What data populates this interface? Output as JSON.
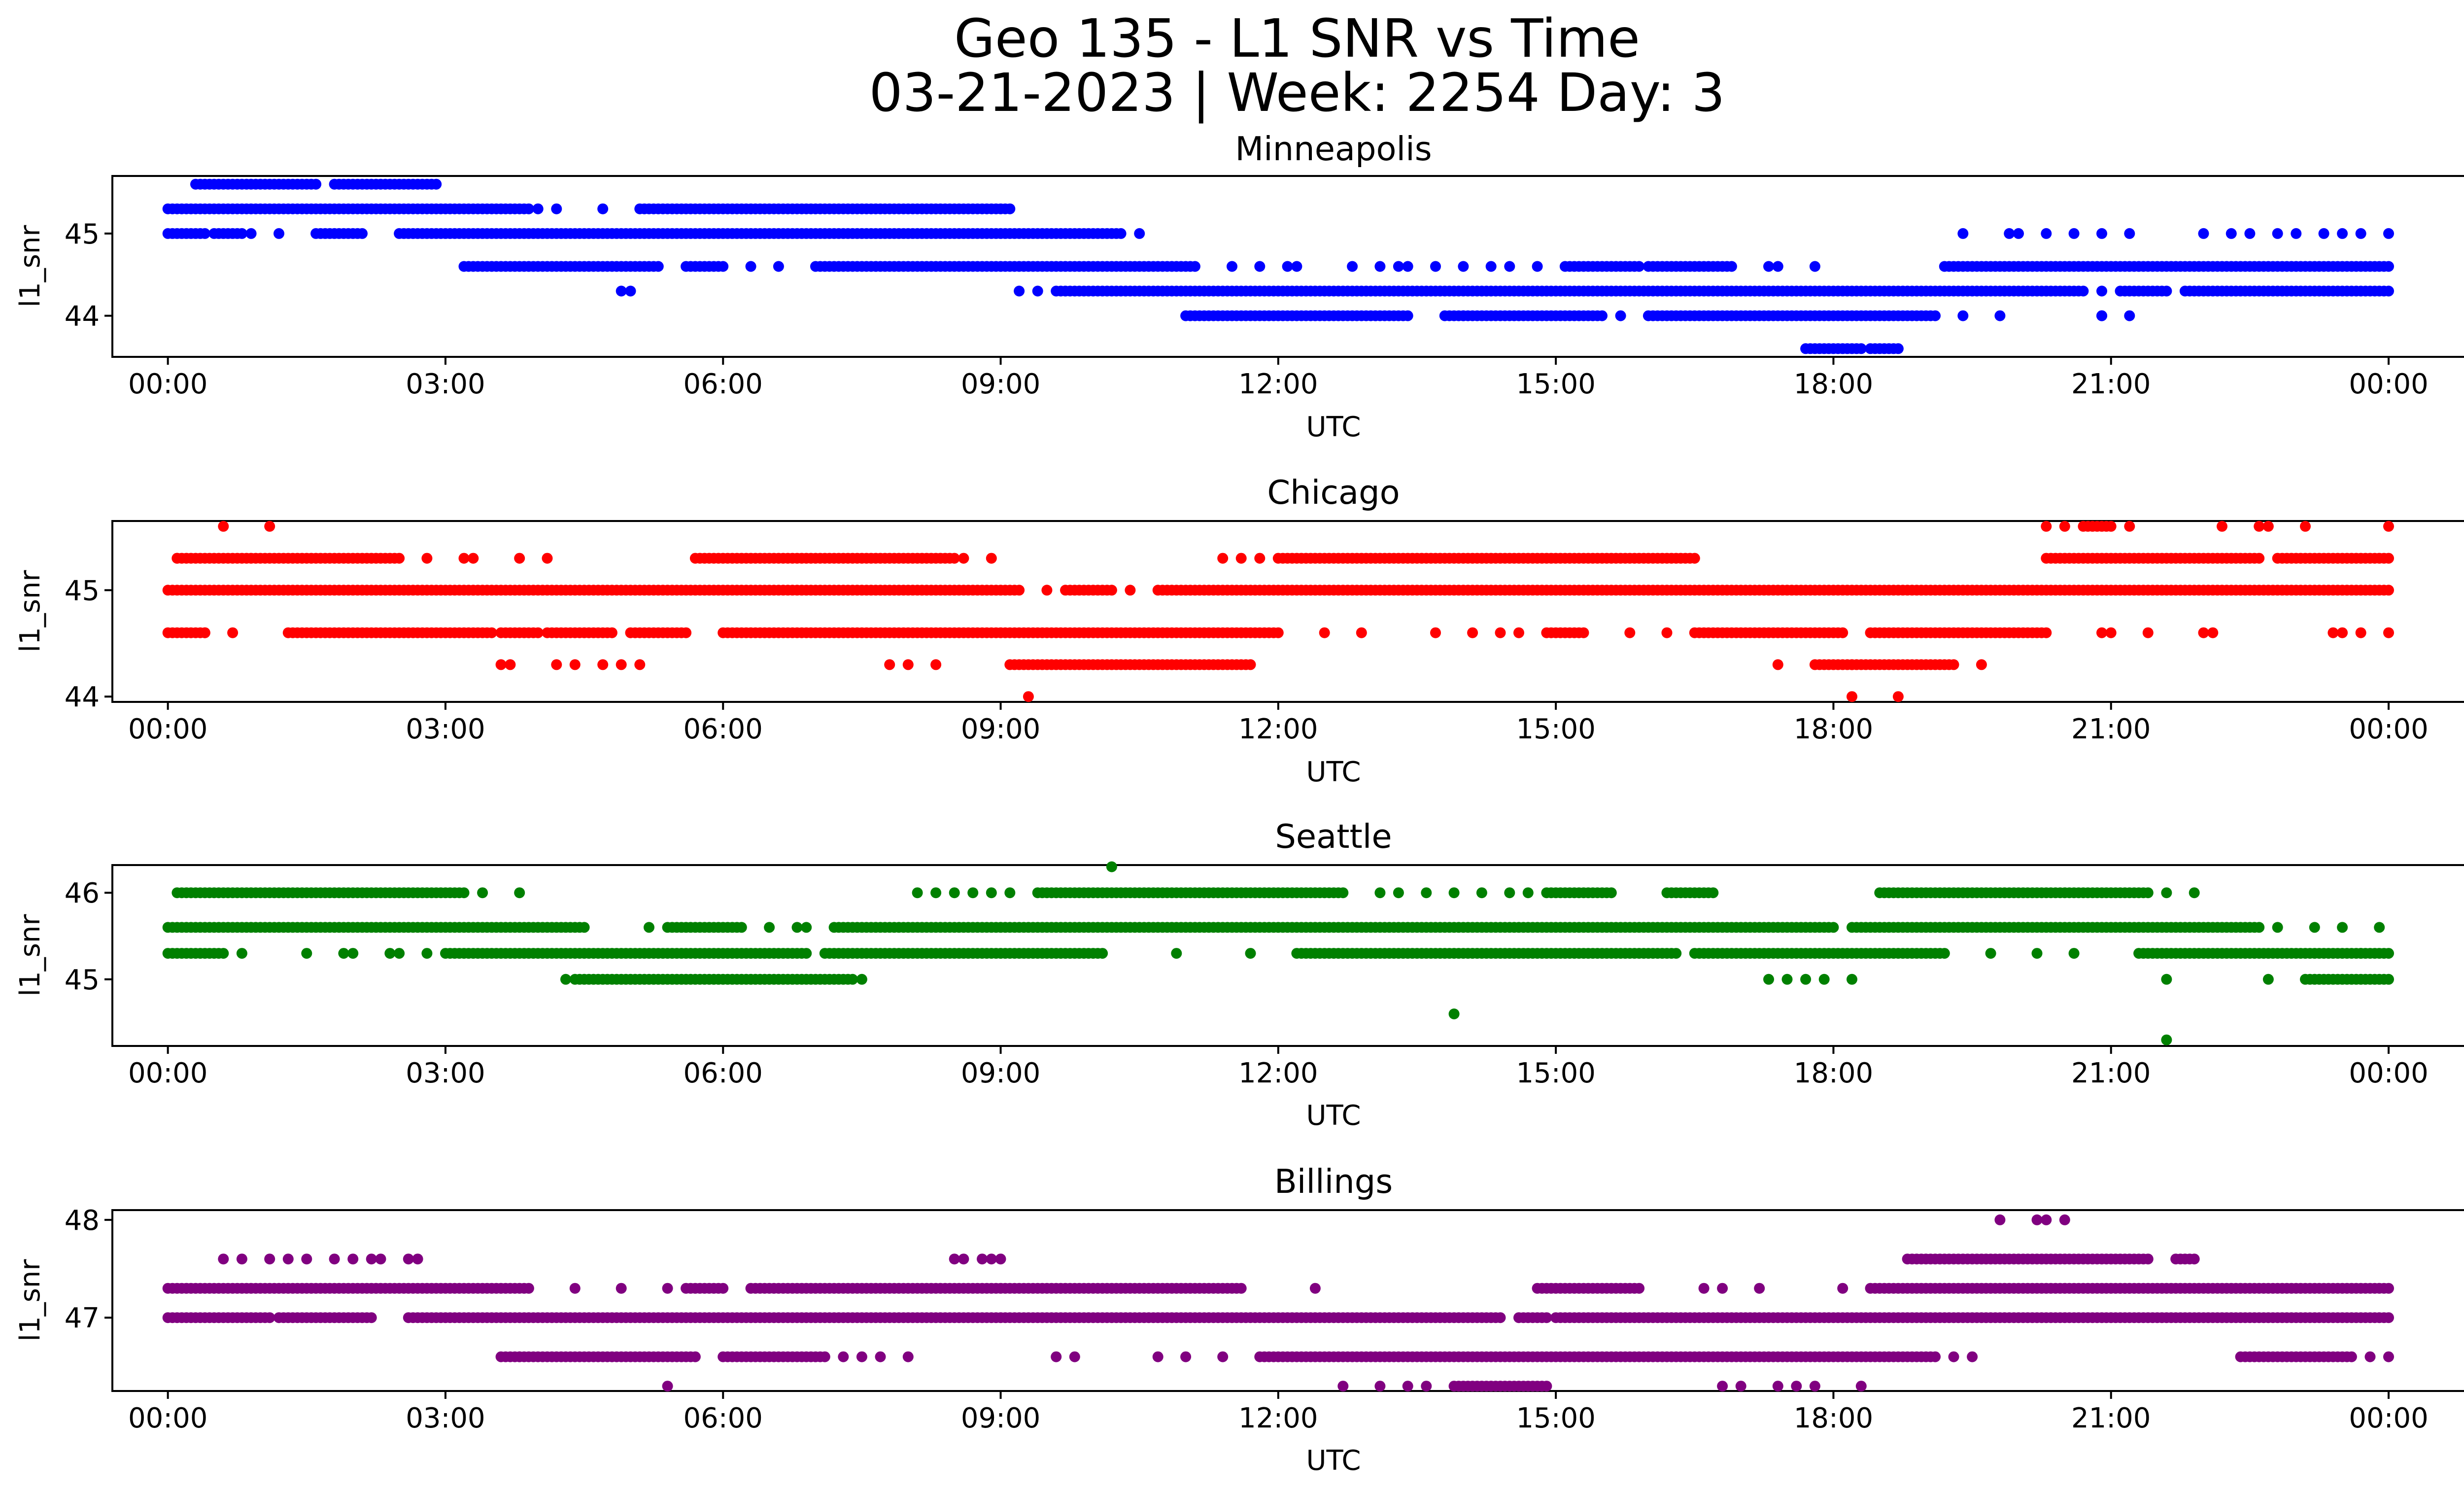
{
  "figure": {
    "title_line1": "Geo 135 - L1 SNR vs Time",
    "title_line2": "03-21-2023 | Week: 2254 Day: 3"
  },
  "chart_data": [
    {
      "type": "scatter",
      "title": "Minneapolis",
      "xlabel": "UTC",
      "ylabel": "l1_snr",
      "color": "#0000ff",
      "xlim": [
        -0.6,
        25.8
      ],
      "ylim": [
        43.5,
        45.7
      ],
      "x_ticks": [
        0,
        3,
        6,
        9,
        12,
        15,
        18,
        21,
        24
      ],
      "x_tick_labels": [
        "00:00",
        "03:00",
        "06:00",
        "09:00",
        "12:00",
        "15:00",
        "18:00",
        "21:00",
        "00:00"
      ],
      "y_ticks": [
        44,
        45
      ],
      "y_tick_labels": [
        "44",
        "45"
      ],
      "levels": [
        {
          "y": 45.6,
          "segments": [
            [
              0.3,
              1.6
            ],
            [
              1.8,
              2.9
            ]
          ],
          "points": []
        },
        {
          "y": 45.3,
          "segments": [
            [
              0.0,
              3.9
            ],
            [
              5.1,
              9.1
            ]
          ],
          "points": [
            4.0,
            4.2,
            4.7
          ]
        },
        {
          "y": 45.0,
          "segments": [
            [
              0.0,
              0.4
            ],
            [
              0.5,
              0.8
            ],
            [
              1.6,
              2.1
            ],
            [
              2.5,
              10.3
            ]
          ],
          "points": [
            0.9,
            1.2,
            10.5
          ]
        },
        {
          "y": 44.6,
          "segments": [
            [
              3.2,
              5.3
            ],
            [
              5.6,
              6.0
            ],
            [
              7.0,
              11.1
            ],
            [
              15.1,
              15.9
            ],
            [
              16.0,
              16.9
            ],
            [
              19.2,
              24.0
            ]
          ],
          "points": [
            6.3,
            6.6,
            11.5,
            11.8,
            12.1,
            12.2,
            12.8,
            13.1,
            13.3,
            13.4,
            13.7,
            14.0,
            14.3,
            14.5,
            14.8,
            17.3,
            17.4,
            17.8
          ]
        },
        {
          "y": 44.3,
          "segments": [
            [
              9.6,
              20.7
            ],
            [
              21.1,
              21.6
            ],
            [
              21.8,
              24.0
            ]
          ],
          "points": [
            4.9,
            5.0,
            9.2,
            9.4,
            20.9
          ]
        },
        {
          "y": 44.0,
          "segments": [
            [
              11.0,
              13.4
            ],
            [
              13.8,
              15.5
            ],
            [
              16.0,
              19.1
            ]
          ],
          "points": [
            14.0,
            15.7,
            19.4,
            19.8,
            20.9
          ]
        },
        {
          "y": 43.6,
          "segments": [
            [
              17.7,
              18.3
            ],
            [
              18.4,
              18.7
            ]
          ],
          "points": []
        }
      ],
      "extra_points": [
        [
          19.4,
          45.0
        ],
        [
          19.9,
          45.0
        ],
        [
          20.0,
          45.0
        ],
        [
          20.3,
          45.0
        ],
        [
          20.6,
          45.0
        ],
        [
          20.9,
          45.0
        ],
        [
          21.2,
          45.0
        ],
        [
          22.0,
          45.0
        ],
        [
          22.3,
          45.0
        ],
        [
          22.5,
          45.0
        ],
        [
          22.8,
          45.0
        ],
        [
          23.0,
          45.0
        ],
        [
          23.3,
          45.0
        ],
        [
          23.5,
          45.0
        ],
        [
          23.7,
          45.0
        ],
        [
          24.0,
          45.0
        ],
        [
          20.9,
          44.0
        ],
        [
          21.2,
          44.0
        ]
      ]
    },
    {
      "type": "scatter",
      "title": "Chicago",
      "xlabel": "UTC",
      "ylabel": "l1_snr",
      "color": "#ff0000",
      "xlim": [
        -0.6,
        25.8
      ],
      "ylim": [
        43.95,
        45.65
      ],
      "x_ticks": [
        0,
        3,
        6,
        9,
        12,
        15,
        18,
        21,
        24
      ],
      "x_tick_labels": [
        "00:00",
        "03:00",
        "06:00",
        "09:00",
        "12:00",
        "15:00",
        "18:00",
        "21:00",
        "00:00"
      ],
      "y_ticks": [
        44,
        45
      ],
      "y_tick_labels": [
        "44",
        "45"
      ],
      "levels": [
        {
          "y": 45.6,
          "segments": [
            [
              20.7,
              21.0
            ]
          ],
          "points": [
            0.6,
            1.1,
            20.3,
            20.5,
            21.2,
            22.2,
            22.6,
            22.7,
            23.1,
            24.0
          ]
        },
        {
          "y": 45.3,
          "segments": [
            [
              0.1,
              2.5
            ],
            [
              5.7,
              8.5
            ],
            [
              12.0,
              16.5
            ],
            [
              20.3,
              22.6
            ],
            [
              22.8,
              24.0
            ]
          ],
          "points": [
            2.8,
            3.3,
            3.8,
            4.1,
            8.6,
            8.9,
            11.4,
            11.6,
            11.8
          ]
        },
        {
          "y": 45.0,
          "segments": [
            [
              0.0,
              9.2
            ],
            [
              9.7,
              10.2
            ],
            [
              10.7,
              24.0
            ]
          ],
          "points": [
            9.5,
            10.4
          ]
        },
        {
          "y": 44.6,
          "segments": [
            [
              0.0,
              0.4
            ],
            [
              1.3,
              3.5
            ],
            [
              3.6,
              4.0
            ],
            [
              4.1,
              4.8
            ],
            [
              5.0,
              5.6
            ],
            [
              6.0,
              12.0
            ],
            [
              14.9,
              15.3
            ],
            [
              16.5,
              18.1
            ],
            [
              18.4,
              20.3
            ]
          ],
          "points": [
            0.7,
            12.5,
            12.9,
            13.7,
            14.1,
            14.4,
            14.6,
            15.8,
            16.2,
            20.9,
            21.0,
            21.4,
            22.0,
            22.1,
            23.4,
            23.5,
            23.7,
            24.0
          ]
        },
        {
          "y": 44.3,
          "segments": [
            [
              9.1,
              11.7
            ],
            [
              17.8,
              19.3
            ]
          ],
          "points": [
            3.6,
            3.7,
            4.2,
            4.4,
            4.7,
            4.9,
            5.1,
            7.8,
            8.0,
            8.3,
            19.6,
            17.4,
            18.2
          ]
        },
        {
          "y": 44.0,
          "segments": [],
          "points": [
            9.3,
            18.2,
            18.7
          ]
        }
      ],
      "extra_points": [
        [
          3.2,
          45.3
        ],
        [
          0.1,
          45.3
        ],
        [
          0.4,
          44.6
        ]
      ]
    },
    {
      "type": "scatter",
      "title": "Seattle",
      "xlabel": "UTC",
      "ylabel": "l1_snr",
      "color": "#008000",
      "xlim": [
        -0.6,
        25.8
      ],
      "ylim": [
        44.23,
        46.32
      ],
      "x_ticks": [
        0,
        3,
        6,
        9,
        12,
        15,
        18,
        21,
        24
      ],
      "x_tick_labels": [
        "00:00",
        "03:00",
        "06:00",
        "09:00",
        "12:00",
        "15:00",
        "18:00",
        "21:00",
        "00:00"
      ],
      "y_ticks": [
        45,
        46
      ],
      "y_tick_labels": [
        "45",
        "46"
      ],
      "levels": [
        {
          "y": 46.3,
          "segments": [],
          "points": [
            10.2
          ]
        },
        {
          "y": 46.0,
          "segments": [
            [
              0.1,
              3.2
            ],
            [
              9.4,
              12.7
            ],
            [
              14.9,
              15.6
            ],
            [
              16.2,
              16.7
            ],
            [
              18.5,
              21.4
            ]
          ],
          "points": [
            3.4,
            3.8,
            8.1,
            8.3,
            8.5,
            8.7,
            8.9,
            9.1,
            13.1,
            13.3,
            13.6,
            13.9,
            14.2,
            14.5,
            14.7,
            21.6,
            21.9
          ]
        },
        {
          "y": 45.6,
          "segments": [
            [
              0.0,
              4.5
            ],
            [
              5.4,
              6.2
            ],
            [
              7.2,
              18.0
            ],
            [
              18.2,
              22.6
            ]
          ],
          "points": [
            5.2,
            6.5,
            6.8,
            6.9,
            22.8,
            23.2,
            23.5,
            23.9
          ]
        },
        {
          "y": 45.3,
          "segments": [
            [
              0.0,
              0.6
            ],
            [
              3.0,
              6.9
            ],
            [
              7.1,
              10.1
            ],
            [
              12.2,
              16.3
            ],
            [
              16.5,
              19.2
            ],
            [
              21.3,
              24.0
            ]
          ],
          "points": [
            0.8,
            1.5,
            1.9,
            2.0,
            2.4,
            2.5,
            2.8,
            10.9,
            11.7,
            19.7,
            20.2,
            20.6,
            23.7
          ]
        },
        {
          "y": 45.0,
          "segments": [
            [
              4.4,
              7.4
            ],
            [
              23.1,
              24.0
            ]
          ],
          "points": [
            4.3,
            7.5,
            17.3,
            17.5,
            17.7,
            17.9,
            18.2,
            21.6,
            22.7
          ]
        },
        {
          "y": 44.6,
          "segments": [],
          "points": [
            13.9
          ]
        },
        {
          "y": 44.3,
          "segments": [],
          "points": [
            21.6
          ]
        }
      ],
      "extra_points": []
    },
    {
      "type": "scatter",
      "title": "Billings",
      "xlabel": "UTC",
      "ylabel": "l1_snr",
      "color": "#800080",
      "xlim": [
        -0.6,
        25.8
      ],
      "ylim": [
        46.25,
        48.1
      ],
      "x_ticks": [
        0,
        3,
        6,
        9,
        12,
        15,
        18,
        21,
        24
      ],
      "x_tick_labels": [
        "00:00",
        "03:00",
        "06:00",
        "09:00",
        "12:00",
        "15:00",
        "18:00",
        "21:00",
        "00:00"
      ],
      "y_ticks": [
        47,
        48
      ],
      "y_tick_labels": [
        "47",
        "48"
      ],
      "levels": [
        {
          "y": 48.0,
          "segments": [],
          "points": [
            19.8,
            20.2,
            20.3,
            20.5
          ]
        },
        {
          "y": 47.6,
          "segments": [
            [
              18.8,
              21.4
            ],
            [
              21.7,
              21.9
            ]
          ],
          "points": [
            0.6,
            0.8,
            1.1,
            1.3,
            1.5,
            1.8,
            2.0,
            2.2,
            2.3,
            2.6,
            2.7,
            8.5,
            8.6,
            8.8,
            8.9,
            9.0
          ]
        },
        {
          "y": 47.3,
          "segments": [
            [
              0.0,
              3.9
            ],
            [
              5.6,
              6.0
            ],
            [
              6.3,
              11.6
            ],
            [
              14.8,
              15.9
            ],
            [
              18.4,
              24.0
            ]
          ],
          "points": [
            4.4,
            4.9,
            5.4,
            12.4,
            16.6,
            16.8,
            17.2,
            18.1
          ]
        },
        {
          "y": 47.0,
          "segments": [
            [
              0.0,
              1.1
            ],
            [
              1.2,
              2.2
            ],
            [
              2.6,
              14.4
            ],
            [
              14.6,
              14.9
            ],
            [
              15.0,
              24.0
            ]
          ],
          "points": []
        },
        {
          "y": 46.6,
          "segments": [
            [
              3.6,
              5.7
            ],
            [
              6.0,
              7.1
            ],
            [
              11.8,
              19.1
            ],
            [
              22.4,
              23.6
            ]
          ],
          "points": [
            3.8,
            7.3,
            7.5,
            7.7,
            8.0,
            9.6,
            9.8,
            10.7,
            11.0,
            11.4,
            19.3,
            19.5,
            23.8,
            24.0
          ]
        },
        {
          "y": 46.3,
          "segments": [
            [
              13.9,
              14.9
            ]
          ],
          "points": [
            5.4,
            12.7,
            13.1,
            13.4,
            13.6,
            16.8,
            17.0,
            17.4,
            17.6,
            17.8,
            18.3
          ]
        }
      ],
      "extra_points": []
    }
  ]
}
